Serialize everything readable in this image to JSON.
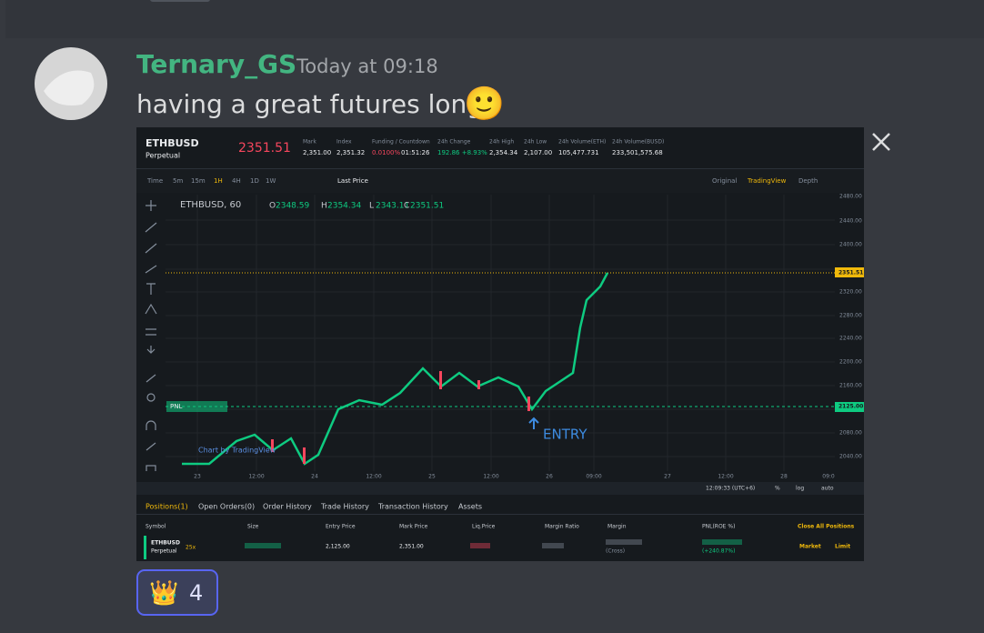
{
  "message": {
    "author": "Ternary_GS",
    "timestamp": "Today at 09:18",
    "text": "having a great futures long",
    "emoji": "🙂"
  },
  "image": {
    "symbol": "ETHBUSD",
    "contract": "Perpetual",
    "last_price": "2351.51",
    "stats": [
      {
        "label": "Mark",
        "value": "2,351.00"
      },
      {
        "label": "Index",
        "value": "2,351.32"
      },
      {
        "label": "Funding / Countdown",
        "value": "0.0100%",
        "extra": "01:51:26"
      },
      {
        "label": "24h Change",
        "value": "192.86 +8.93%"
      },
      {
        "label": "24h High",
        "value": "2,354.34"
      },
      {
        "label": "24h Low",
        "value": "2,107.00"
      },
      {
        "label": "24h Volume(ETH)",
        "value": "105,477.731"
      },
      {
        "label": "24h Volume(BUSD)",
        "value": "233,501,575.68"
      }
    ],
    "intervals": [
      "Time",
      "5m",
      "15m",
      "1H",
      "4H",
      "1D",
      "1W"
    ],
    "active_interval": 3,
    "price_type": "Last Price",
    "views": [
      "Original",
      "TradingView",
      "Depth"
    ],
    "active_view": 1,
    "chart": {
      "title": "ETHBUSD, 60",
      "ohlc": [
        {
          "key": "O",
          "value": "2348.59"
        },
        {
          "key": "H",
          "value": "2354.34"
        },
        {
          "key": "L",
          "value": "2343.11"
        },
        {
          "key": "C",
          "value": "2351.51"
        }
      ],
      "price_axis": [
        "2480.00",
        "2440.00",
        "2400.00",
        "2320.00",
        "2280.00",
        "2240.00",
        "2200.00",
        "2160.00",
        "2080.00",
        "2040.00"
      ],
      "current_price_label": "2351.51",
      "entry_price_label": "2125.00",
      "time_axis": [
        "23",
        "12:00",
        "24",
        "12:00",
        "25",
        "12:00",
        "26",
        "09:00",
        "27",
        "12:00",
        "28",
        "09:0"
      ],
      "pnl_label": "PNL",
      "watermark": "Chart by TradingView",
      "annotation": "ENTRY",
      "clock": "12:09:33 (UTC+6)",
      "scale_options": [
        "%",
        "log",
        "auto"
      ]
    },
    "positions": {
      "tabs": [
        "Positions(1)",
        "Open Orders(0)",
        "Order History",
        "Trade History",
        "Transaction History",
        "Assets"
      ],
      "headers": [
        "Symbol",
        "Size",
        "Entry Price",
        "Mark Price",
        "Liq.Price",
        "Margin Ratio",
        "Margin",
        "PNL(ROE %)"
      ],
      "close_all": "Close All Positions",
      "row": {
        "symbol": "ETHBUSD",
        "contract": "Perpetual",
        "leverage": "25x",
        "entry_price": "2,125.00",
        "mark_price": "2,351.00",
        "margin_mode": "(Cross)",
        "roe": "(+240.87%)",
        "actions": [
          "Market",
          "Limit"
        ]
      }
    }
  },
  "reaction": {
    "emoji": "👑",
    "count": 4
  }
}
